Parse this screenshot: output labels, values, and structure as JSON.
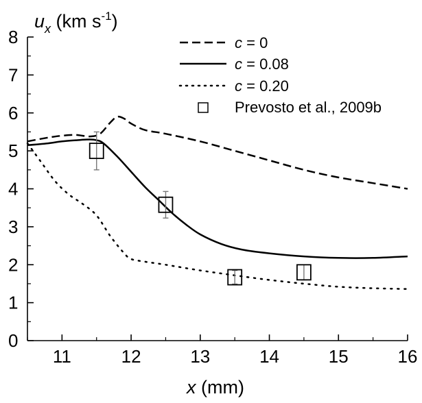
{
  "chart_data": {
    "type": "line",
    "xlabel": {
      "var": "x",
      "unit": " (mm)"
    },
    "ylabel": {
      "var": "u",
      "sub": "x",
      "unit_pre": " (km s",
      "unit_sup": "-1",
      "unit_post": ")"
    },
    "xlim": [
      10.5,
      16
    ],
    "ylim": [
      0,
      8
    ],
    "xticks": [
      "11",
      "12",
      "13",
      "14",
      "15",
      "16"
    ],
    "yticks": [
      "0",
      "1",
      "2",
      "3",
      "4",
      "5",
      "6",
      "7",
      "8"
    ],
    "legend_position": "top-right",
    "series": [
      {
        "name": "c = 0",
        "name_var": "c",
        "name_rest": " = 0",
        "style": "dashed",
        "color": "#000000",
        "x": [
          10.5,
          10.8,
          11.0,
          11.2,
          11.4,
          11.55,
          11.7,
          11.8,
          11.9,
          12.0,
          12.2,
          12.5,
          13.0,
          13.5,
          14.0,
          14.5,
          15.0,
          15.5,
          16.0
        ],
        "y": [
          5.25,
          5.35,
          5.4,
          5.42,
          5.38,
          5.45,
          5.75,
          5.9,
          5.85,
          5.72,
          5.55,
          5.45,
          5.25,
          5.0,
          4.75,
          4.5,
          4.3,
          4.15,
          4.0
        ]
      },
      {
        "name": "c = 0.08",
        "name_var": "c",
        "name_rest": " = 0.08",
        "style": "solid",
        "color": "#000000",
        "x": [
          10.5,
          10.8,
          11.0,
          11.2,
          11.4,
          11.5,
          11.6,
          11.8,
          12.0,
          12.2,
          12.4,
          12.6,
          12.8,
          13.0,
          13.3,
          13.6,
          14.0,
          14.5,
          15.0,
          15.5,
          16.0
        ],
        "y": [
          5.15,
          5.2,
          5.25,
          5.28,
          5.3,
          5.28,
          5.2,
          4.85,
          4.45,
          4.05,
          3.7,
          3.35,
          3.05,
          2.8,
          2.55,
          2.4,
          2.3,
          2.22,
          2.18,
          2.18,
          2.22
        ]
      },
      {
        "name": "c = 0.20",
        "name_var": "c",
        "name_rest": " = 0.20",
        "style": "dotted",
        "color": "#000000",
        "x": [
          10.5,
          10.7,
          10.9,
          11.1,
          11.3,
          11.5,
          11.7,
          11.9,
          12.0,
          12.2,
          12.5,
          13.0,
          13.5,
          14.0,
          14.5,
          15.0,
          15.5,
          16.0
        ],
        "y": [
          5.2,
          4.7,
          4.2,
          3.85,
          3.6,
          3.3,
          2.75,
          2.3,
          2.15,
          2.08,
          2.0,
          1.85,
          1.72,
          1.6,
          1.5,
          1.42,
          1.38,
          1.36
        ]
      },
      {
        "name": "Prevosto et al., 2009b",
        "style": "markers",
        "marker": "square",
        "color": "#000000",
        "x": [
          11.5,
          12.5,
          13.5,
          14.5
        ],
        "y": [
          5.0,
          3.58,
          1.67,
          1.8
        ],
        "error": [
          0.5,
          0.35,
          0.18,
          0.2
        ]
      }
    ]
  }
}
